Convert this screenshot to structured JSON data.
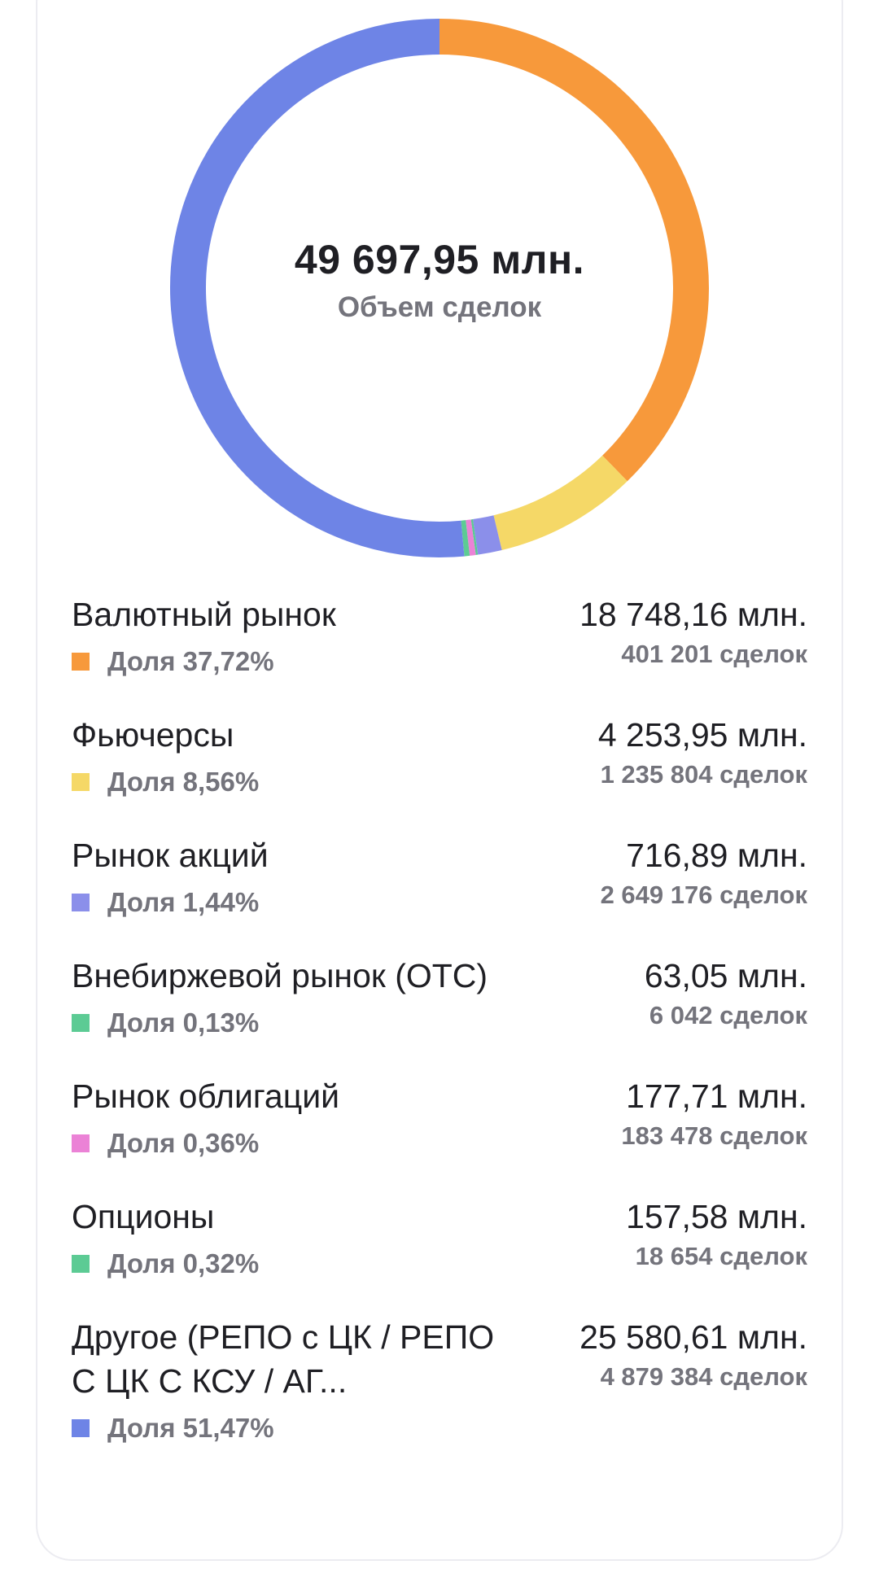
{
  "colors": {
    "orange": "#F7993B",
    "yellow": "#F5D867",
    "lavender": "#8B8FEA",
    "green": "#5CCB94",
    "pink": "#EB82D6",
    "blue": "#6E84E6",
    "card_border": "#ECECF1"
  },
  "summary": {
    "total": "49 697,95 млн.",
    "label": "Объем сделок"
  },
  "chart_data": {
    "type": "pie",
    "donut": true,
    "center_value": "49 697,95 млн.",
    "center_label": "Объем сделок",
    "start_angle_deg": 0,
    "direction": "clockwise",
    "slices": [
      {
        "label": "Валютный рынок",
        "share_pct": 37.72,
        "value_mln": 18748.16,
        "color": "#F7993B"
      },
      {
        "label": "Фьючерсы",
        "share_pct": 8.56,
        "value_mln": 4253.95,
        "color": "#F5D867"
      },
      {
        "label": "Рынок акций",
        "share_pct": 1.44,
        "value_mln": 716.89,
        "color": "#8B8FEA"
      },
      {
        "label": "Внебиржевой рынок (OTC)",
        "share_pct": 0.13,
        "value_mln": 63.05,
        "color": "#5CCB94"
      },
      {
        "label": "Рынок облигаций",
        "share_pct": 0.36,
        "value_mln": 177.71,
        "color": "#EB82D6"
      },
      {
        "label": "Опционы",
        "share_pct": 0.32,
        "value_mln": 157.58,
        "color": "#5CCB94"
      },
      {
        "label": "Другое (РЕПО с ЦК / РЕПО С ЦК С КСУ / АГ...",
        "share_pct": 51.47,
        "value_mln": 25580.61,
        "color": "#6E84E6"
      }
    ]
  },
  "legend": [
    {
      "name": "Валютный рынок",
      "share": "Доля 37,72%",
      "volume": "18 748,16 млн.",
      "deals": "401 201 сделок",
      "color": "#F7993B"
    },
    {
      "name": "Фьючерсы",
      "share": "Доля 8,56%",
      "volume": "4 253,95 млн.",
      "deals": "1 235 804 сделок",
      "color": "#F5D867"
    },
    {
      "name": "Рынок акций",
      "share": "Доля 1,44%",
      "volume": "716,89 млн.",
      "deals": "2 649 176 сделок",
      "color": "#8B8FEA"
    },
    {
      "name": "Внебиржевой рынок (OTC)",
      "share": "Доля 0,13%",
      "volume": "63,05 млн.",
      "deals": "6 042 сделок",
      "color": "#5CCB94"
    },
    {
      "name": "Рынок облигаций",
      "share": "Доля 0,36%",
      "volume": "177,71 млн.",
      "deals": "183 478 сделок",
      "color": "#EB82D6"
    },
    {
      "name": "Опционы",
      "share": "Доля 0,32%",
      "volume": "157,58 млн.",
      "deals": "18 654 сделок",
      "color": "#5CCB94"
    },
    {
      "name": "Другое (РЕПО с ЦК / РЕПО С ЦК С КСУ / АГ...",
      "share": "Доля 51,47%",
      "volume": "25 580,61 млн.",
      "deals": "4 879 384 сделок",
      "color": "#6E84E6"
    }
  ]
}
